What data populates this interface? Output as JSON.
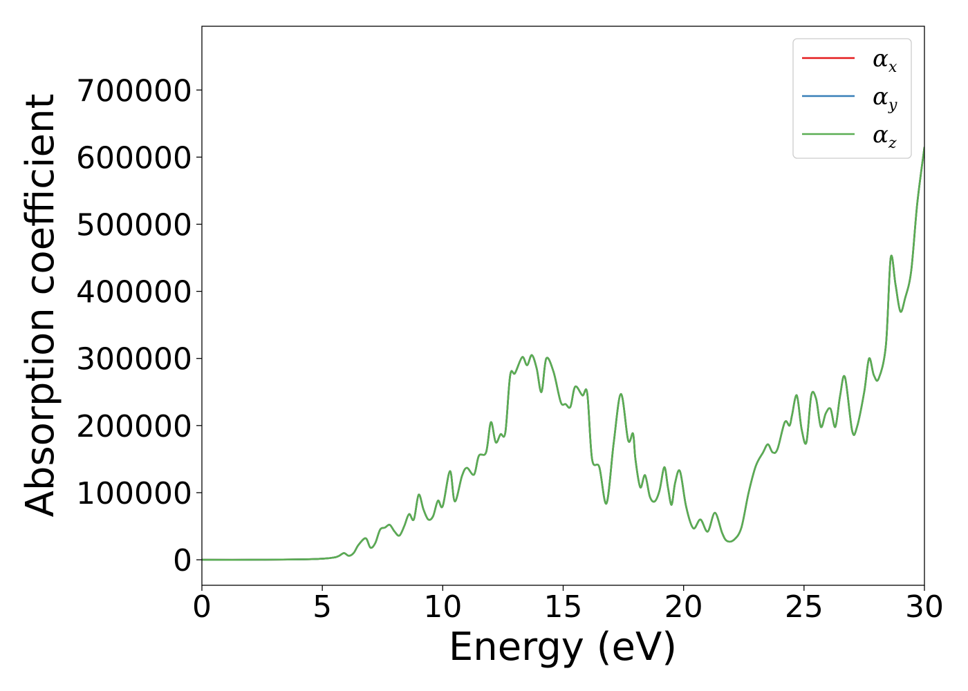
{
  "chart_data": {
    "type": "line",
    "xlabel": "Energy (eV)",
    "ylabel": "Absorption coefficient",
    "xlim": [
      0,
      30
    ],
    "ylim": [
      -38000,
      795000
    ],
    "xticks": [
      0,
      5,
      10,
      15,
      20,
      25,
      30
    ],
    "xtick_labels": [
      "0",
      "5",
      "10",
      "15",
      "20",
      "25",
      "30"
    ],
    "yticks": [
      0,
      100000,
      200000,
      300000,
      400000,
      500000,
      600000,
      700000
    ],
    "ytick_labels": [
      "0",
      "100000",
      "200000",
      "300000",
      "400000",
      "500000",
      "600000",
      "700000"
    ],
    "grid": false,
    "legend_position": "top-right",
    "series": [
      {
        "name": "α",
        "subscript": "x",
        "color": "#e41a1c",
        "x": [
          0,
          2,
          4,
          5,
          5.5,
          5.7,
          5.9,
          6.1,
          6.3,
          6.5,
          6.8,
          7.0,
          7.2,
          7.4,
          7.6,
          7.8,
          8.0,
          8.2,
          8.4,
          8.6,
          8.8,
          9.0,
          9.2,
          9.4,
          9.6,
          9.8,
          10.0,
          10.3,
          10.5,
          10.8,
          11.0,
          11.3,
          11.5,
          11.8,
          12.0,
          12.2,
          12.4,
          12.6,
          12.8,
          13.0,
          13.3,
          13.5,
          13.7,
          13.9,
          14.1,
          14.3,
          14.6,
          14.9,
          15.1,
          15.3,
          15.5,
          15.8,
          16.0,
          16.2,
          16.5,
          16.8,
          17.1,
          17.4,
          17.7,
          17.9,
          18.0,
          18.2,
          18.4,
          18.6,
          18.8,
          19.0,
          19.2,
          19.35,
          19.5,
          19.65,
          19.85,
          20.1,
          20.4,
          20.7,
          21.0,
          21.3,
          21.6,
          21.8,
          22.1,
          22.4,
          22.7,
          23.0,
          23.3,
          23.5,
          23.7,
          23.9,
          24.2,
          24.4,
          24.5,
          24.7,
          24.9,
          25.1,
          25.3,
          25.5,
          25.7,
          25.9,
          26.1,
          26.3,
          26.5,
          26.7,
          27.0,
          27.2,
          27.5,
          27.7,
          27.9,
          28.1,
          28.4,
          28.6,
          28.8,
          29.0,
          29.2,
          29.45,
          29.7,
          30.0
        ],
        "y": [
          0,
          0,
          500,
          1500,
          3500,
          6000,
          10000,
          6000,
          10000,
          22000,
          32000,
          18000,
          25000,
          45000,
          48000,
          52000,
          42000,
          36000,
          50000,
          68000,
          60000,
          97000,
          75000,
          60000,
          65000,
          88000,
          80000,
          132000,
          87000,
          125000,
          137000,
          127000,
          155000,
          160000,
          205000,
          175000,
          187000,
          190000,
          275000,
          278000,
          302000,
          290000,
          305000,
          285000,
          250000,
          300000,
          280000,
          235000,
          232000,
          228000,
          258000,
          245000,
          248000,
          150000,
          138000,
          84000,
          175000,
          247000,
          178000,
          188000,
          150000,
          108000,
          126000,
          94000,
          87000,
          103000,
          138000,
          108000,
          82000,
          115000,
          132000,
          80000,
          47000,
          60000,
          42000,
          70000,
          40000,
          28000,
          30000,
          48000,
          100000,
          140000,
          160000,
          172000,
          160000,
          165000,
          205000,
          200000,
          215000,
          245000,
          195000,
          175000,
          245000,
          240000,
          198000,
          218000,
          225000,
          198000,
          245000,
          272000,
          192000,
          198000,
          250000,
          300000,
          275000,
          270000,
          320000,
          450000,
          410000,
          370000,
          390000,
          430000,
          530000,
          615000
        ]
      },
      {
        "name": "α",
        "subscript": "y",
        "color": "#377eb8",
        "x": [
          0,
          2,
          4,
          5,
          5.5,
          5.7,
          5.9,
          6.1,
          6.3,
          6.5,
          6.8,
          7.0,
          7.2,
          7.4,
          7.6,
          7.8,
          8.0,
          8.2,
          8.4,
          8.6,
          8.8,
          9.0,
          9.2,
          9.4,
          9.6,
          9.8,
          10.0,
          10.3,
          10.5,
          10.8,
          11.0,
          11.3,
          11.5,
          11.8,
          12.0,
          12.2,
          12.4,
          12.6,
          12.8,
          13.0,
          13.3,
          13.5,
          13.7,
          13.9,
          14.1,
          14.3,
          14.6,
          14.9,
          15.1,
          15.3,
          15.5,
          15.8,
          16.0,
          16.2,
          16.5,
          16.8,
          17.1,
          17.4,
          17.7,
          17.9,
          18.0,
          18.2,
          18.4,
          18.6,
          18.8,
          19.0,
          19.2,
          19.35,
          19.5,
          19.65,
          19.85,
          20.1,
          20.4,
          20.7,
          21.0,
          21.3,
          21.6,
          21.8,
          22.1,
          22.4,
          22.7,
          23.0,
          23.3,
          23.5,
          23.7,
          23.9,
          24.2,
          24.4,
          24.5,
          24.7,
          24.9,
          25.1,
          25.3,
          25.5,
          25.7,
          25.9,
          26.1,
          26.3,
          26.5,
          26.7,
          27.0,
          27.2,
          27.5,
          27.7,
          27.9,
          28.1,
          28.4,
          28.6,
          28.8,
          29.0,
          29.2,
          29.45,
          29.7,
          30.0
        ],
        "y": [
          0,
          0,
          500,
          1500,
          3500,
          6000,
          10000,
          6000,
          10000,
          22000,
          32000,
          18000,
          25000,
          45000,
          48000,
          52000,
          42000,
          36000,
          50000,
          68000,
          60000,
          97000,
          75000,
          60000,
          65000,
          88000,
          80000,
          132000,
          87000,
          125000,
          137000,
          127000,
          155000,
          160000,
          205000,
          175000,
          187000,
          190000,
          275000,
          278000,
          302000,
          290000,
          305000,
          285000,
          250000,
          300000,
          280000,
          235000,
          232000,
          228000,
          258000,
          245000,
          248000,
          150000,
          138000,
          84000,
          175000,
          247000,
          178000,
          188000,
          150000,
          108000,
          126000,
          94000,
          87000,
          103000,
          138000,
          108000,
          82000,
          115000,
          132000,
          80000,
          47000,
          60000,
          42000,
          70000,
          40000,
          28000,
          30000,
          48000,
          100000,
          140000,
          160000,
          172000,
          160000,
          165000,
          205000,
          200000,
          215000,
          245000,
          195000,
          175000,
          245000,
          240000,
          198000,
          218000,
          225000,
          198000,
          245000,
          272000,
          192000,
          198000,
          250000,
          300000,
          275000,
          270000,
          320000,
          450000,
          410000,
          370000,
          390000,
          430000,
          530000,
          615000
        ]
      },
      {
        "name": "α",
        "subscript": "z",
        "color": "#5aad52",
        "x": [
          0,
          2,
          4,
          5,
          5.5,
          5.7,
          5.9,
          6.1,
          6.3,
          6.5,
          6.8,
          7.0,
          7.2,
          7.4,
          7.6,
          7.8,
          8.0,
          8.2,
          8.4,
          8.6,
          8.8,
          9.0,
          9.2,
          9.4,
          9.6,
          9.8,
          10.0,
          10.3,
          10.5,
          10.8,
          11.0,
          11.3,
          11.5,
          11.8,
          12.0,
          12.2,
          12.4,
          12.6,
          12.8,
          13.0,
          13.3,
          13.5,
          13.7,
          13.9,
          14.1,
          14.3,
          14.6,
          14.9,
          15.1,
          15.3,
          15.5,
          15.8,
          16.0,
          16.2,
          16.5,
          16.8,
          17.1,
          17.4,
          17.7,
          17.9,
          18.0,
          18.2,
          18.4,
          18.6,
          18.8,
          19.0,
          19.2,
          19.35,
          19.5,
          19.65,
          19.85,
          20.1,
          20.4,
          20.7,
          21.0,
          21.3,
          21.6,
          21.8,
          22.1,
          22.4,
          22.7,
          23.0,
          23.3,
          23.5,
          23.7,
          23.9,
          24.2,
          24.4,
          24.5,
          24.7,
          24.9,
          25.1,
          25.3,
          25.5,
          25.7,
          25.9,
          26.1,
          26.3,
          26.5,
          26.7,
          27.0,
          27.2,
          27.5,
          27.7,
          27.9,
          28.1,
          28.4,
          28.6,
          28.8,
          29.0,
          29.2,
          29.45,
          29.7,
          30.0
        ],
        "y": [
          0,
          0,
          500,
          1500,
          3500,
          6000,
          10000,
          6000,
          10000,
          22000,
          32000,
          18000,
          25000,
          45000,
          48000,
          52000,
          42000,
          36000,
          50000,
          68000,
          60000,
          97000,
          75000,
          60000,
          65000,
          88000,
          80000,
          132000,
          87000,
          125000,
          137000,
          127000,
          155000,
          160000,
          205000,
          175000,
          187000,
          190000,
          275000,
          278000,
          302000,
          290000,
          305000,
          285000,
          250000,
          300000,
          280000,
          235000,
          232000,
          228000,
          258000,
          245000,
          248000,
          150000,
          138000,
          84000,
          175000,
          247000,
          178000,
          188000,
          150000,
          108000,
          126000,
          94000,
          87000,
          103000,
          138000,
          108000,
          82000,
          115000,
          132000,
          80000,
          47000,
          60000,
          42000,
          70000,
          40000,
          28000,
          30000,
          48000,
          100000,
          140000,
          160000,
          172000,
          160000,
          165000,
          205000,
          200000,
          215000,
          245000,
          195000,
          175000,
          245000,
          240000,
          198000,
          218000,
          225000,
          198000,
          245000,
          272000,
          192000,
          198000,
          250000,
          300000,
          275000,
          270000,
          320000,
          450000,
          410000,
          370000,
          390000,
          430000,
          530000,
          615000
        ]
      }
    ]
  }
}
